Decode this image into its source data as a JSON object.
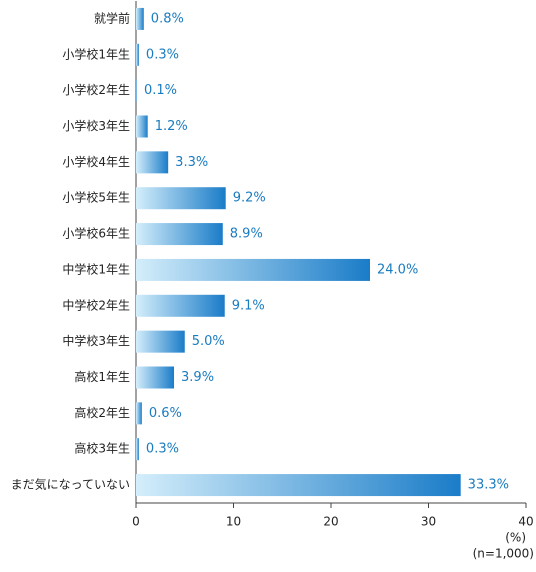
{
  "chart_data": {
    "type": "bar",
    "orientation": "horizontal",
    "categories": [
      "就学前",
      "小学校1年生",
      "小学校2年生",
      "小学校3年生",
      "小学校4年生",
      "小学校5年生",
      "小学校6年生",
      "中学校1年生",
      "中学校2年生",
      "中学校3年生",
      "高校1年生",
      "高校2年生",
      "高校3年生",
      "まだ気になっていない"
    ],
    "values": [
      0.8,
      0.3,
      0.1,
      1.2,
      3.3,
      9.2,
      8.9,
      24.0,
      9.1,
      5.0,
      3.9,
      0.6,
      0.3,
      33.3
    ],
    "value_labels": [
      "0.8%",
      "0.3%",
      "0.1%",
      "1.2%",
      "3.3%",
      "9.2%",
      "8.9%",
      "24.0%",
      "9.1%",
      "5.0%",
      "3.9%",
      "0.6%",
      "0.3%",
      "33.3%"
    ],
    "color": "#1a7cc8",
    "xlim": [
      0,
      40
    ],
    "xticks": [
      0,
      10,
      20,
      30,
      40
    ],
    "x_label": "(%)",
    "note": "(n=1,000)"
  }
}
